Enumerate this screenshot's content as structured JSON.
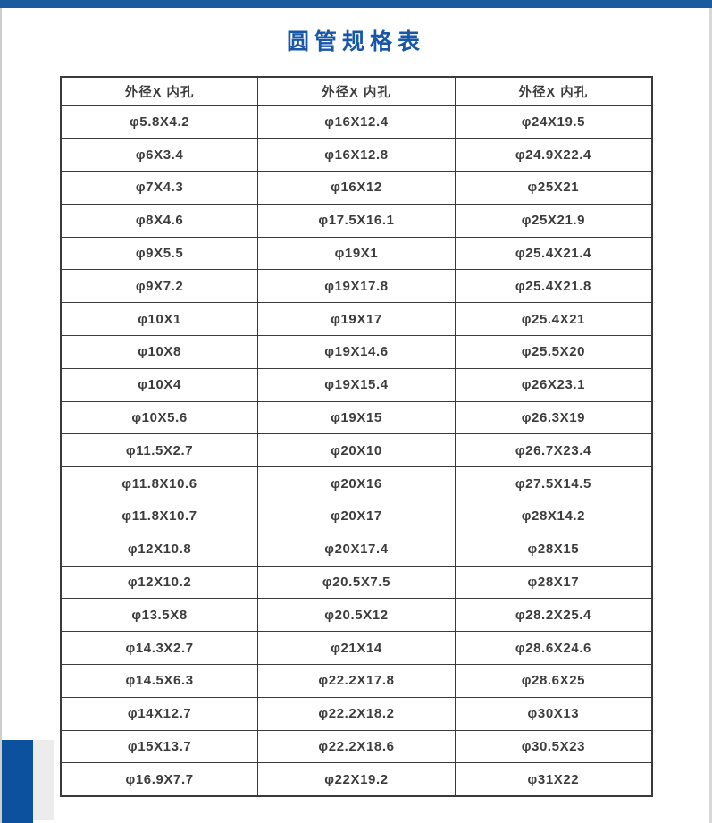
{
  "title": "圆管规格表",
  "colors": {
    "top_bar": "#1a5a9e",
    "title_text": "#1857a8",
    "table_border": "#3a3a3a",
    "cell_text": "#3c3c3c",
    "accent_block_blue": "#0b519e",
    "accent_block_gray": "#ececec"
  },
  "table": {
    "headers": [
      "外径X 内孔",
      "外径X 内孔",
      "外径X 内孔"
    ],
    "columns": [
      [
        "φ5.8X4.2",
        "φ6X3.4",
        "φ7X4.3",
        "φ8X4.6",
        "φ9X5.5",
        "φ9X7.2",
        "φ10X1",
        "φ10X8",
        "φ10X4",
        "φ10X5.6",
        "φ11.5X2.7",
        "φ11.8X10.6",
        "φ11.8X10.7",
        "φ12X10.8",
        "φ12X10.2",
        "φ13.5X8",
        "φ14.3X2.7",
        "φ14.5X6.3",
        "φ14X12.7",
        "φ15X13.7",
        "φ16.9X7.7"
      ],
      [
        "φ16X12.4",
        "φ16X12.8",
        "φ16X12",
        "φ17.5X16.1",
        "φ19X1",
        "φ19X17.8",
        "φ19X17",
        "φ19X14.6",
        "φ19X15.4",
        "φ19X15",
        "φ20X10",
        "φ20X16",
        "φ20X17",
        "φ20X17.4",
        "φ20.5X7.5",
        "φ20.5X12",
        "φ21X14",
        "φ22.2X17.8",
        "φ22.2X18.2",
        "φ22.2X18.6",
        "φ22X19.2"
      ],
      [
        "φ24X19.5",
        "φ24.9X22.4",
        "φ25X21",
        "φ25X21.9",
        "φ25.4X21.4",
        "φ25.4X21.8",
        "φ25.4X21",
        "φ25.5X20",
        "φ26X23.1",
        "φ26.3X19",
        "φ26.7X23.4",
        "φ27.5X14.5",
        "φ28X14.2",
        "φ28X15",
        "φ28X17",
        "φ28.2X25.4",
        "φ28.6X24.6",
        "φ28.6X25",
        "φ30X13",
        "φ30.5X23",
        "φ31X22"
      ]
    ]
  }
}
